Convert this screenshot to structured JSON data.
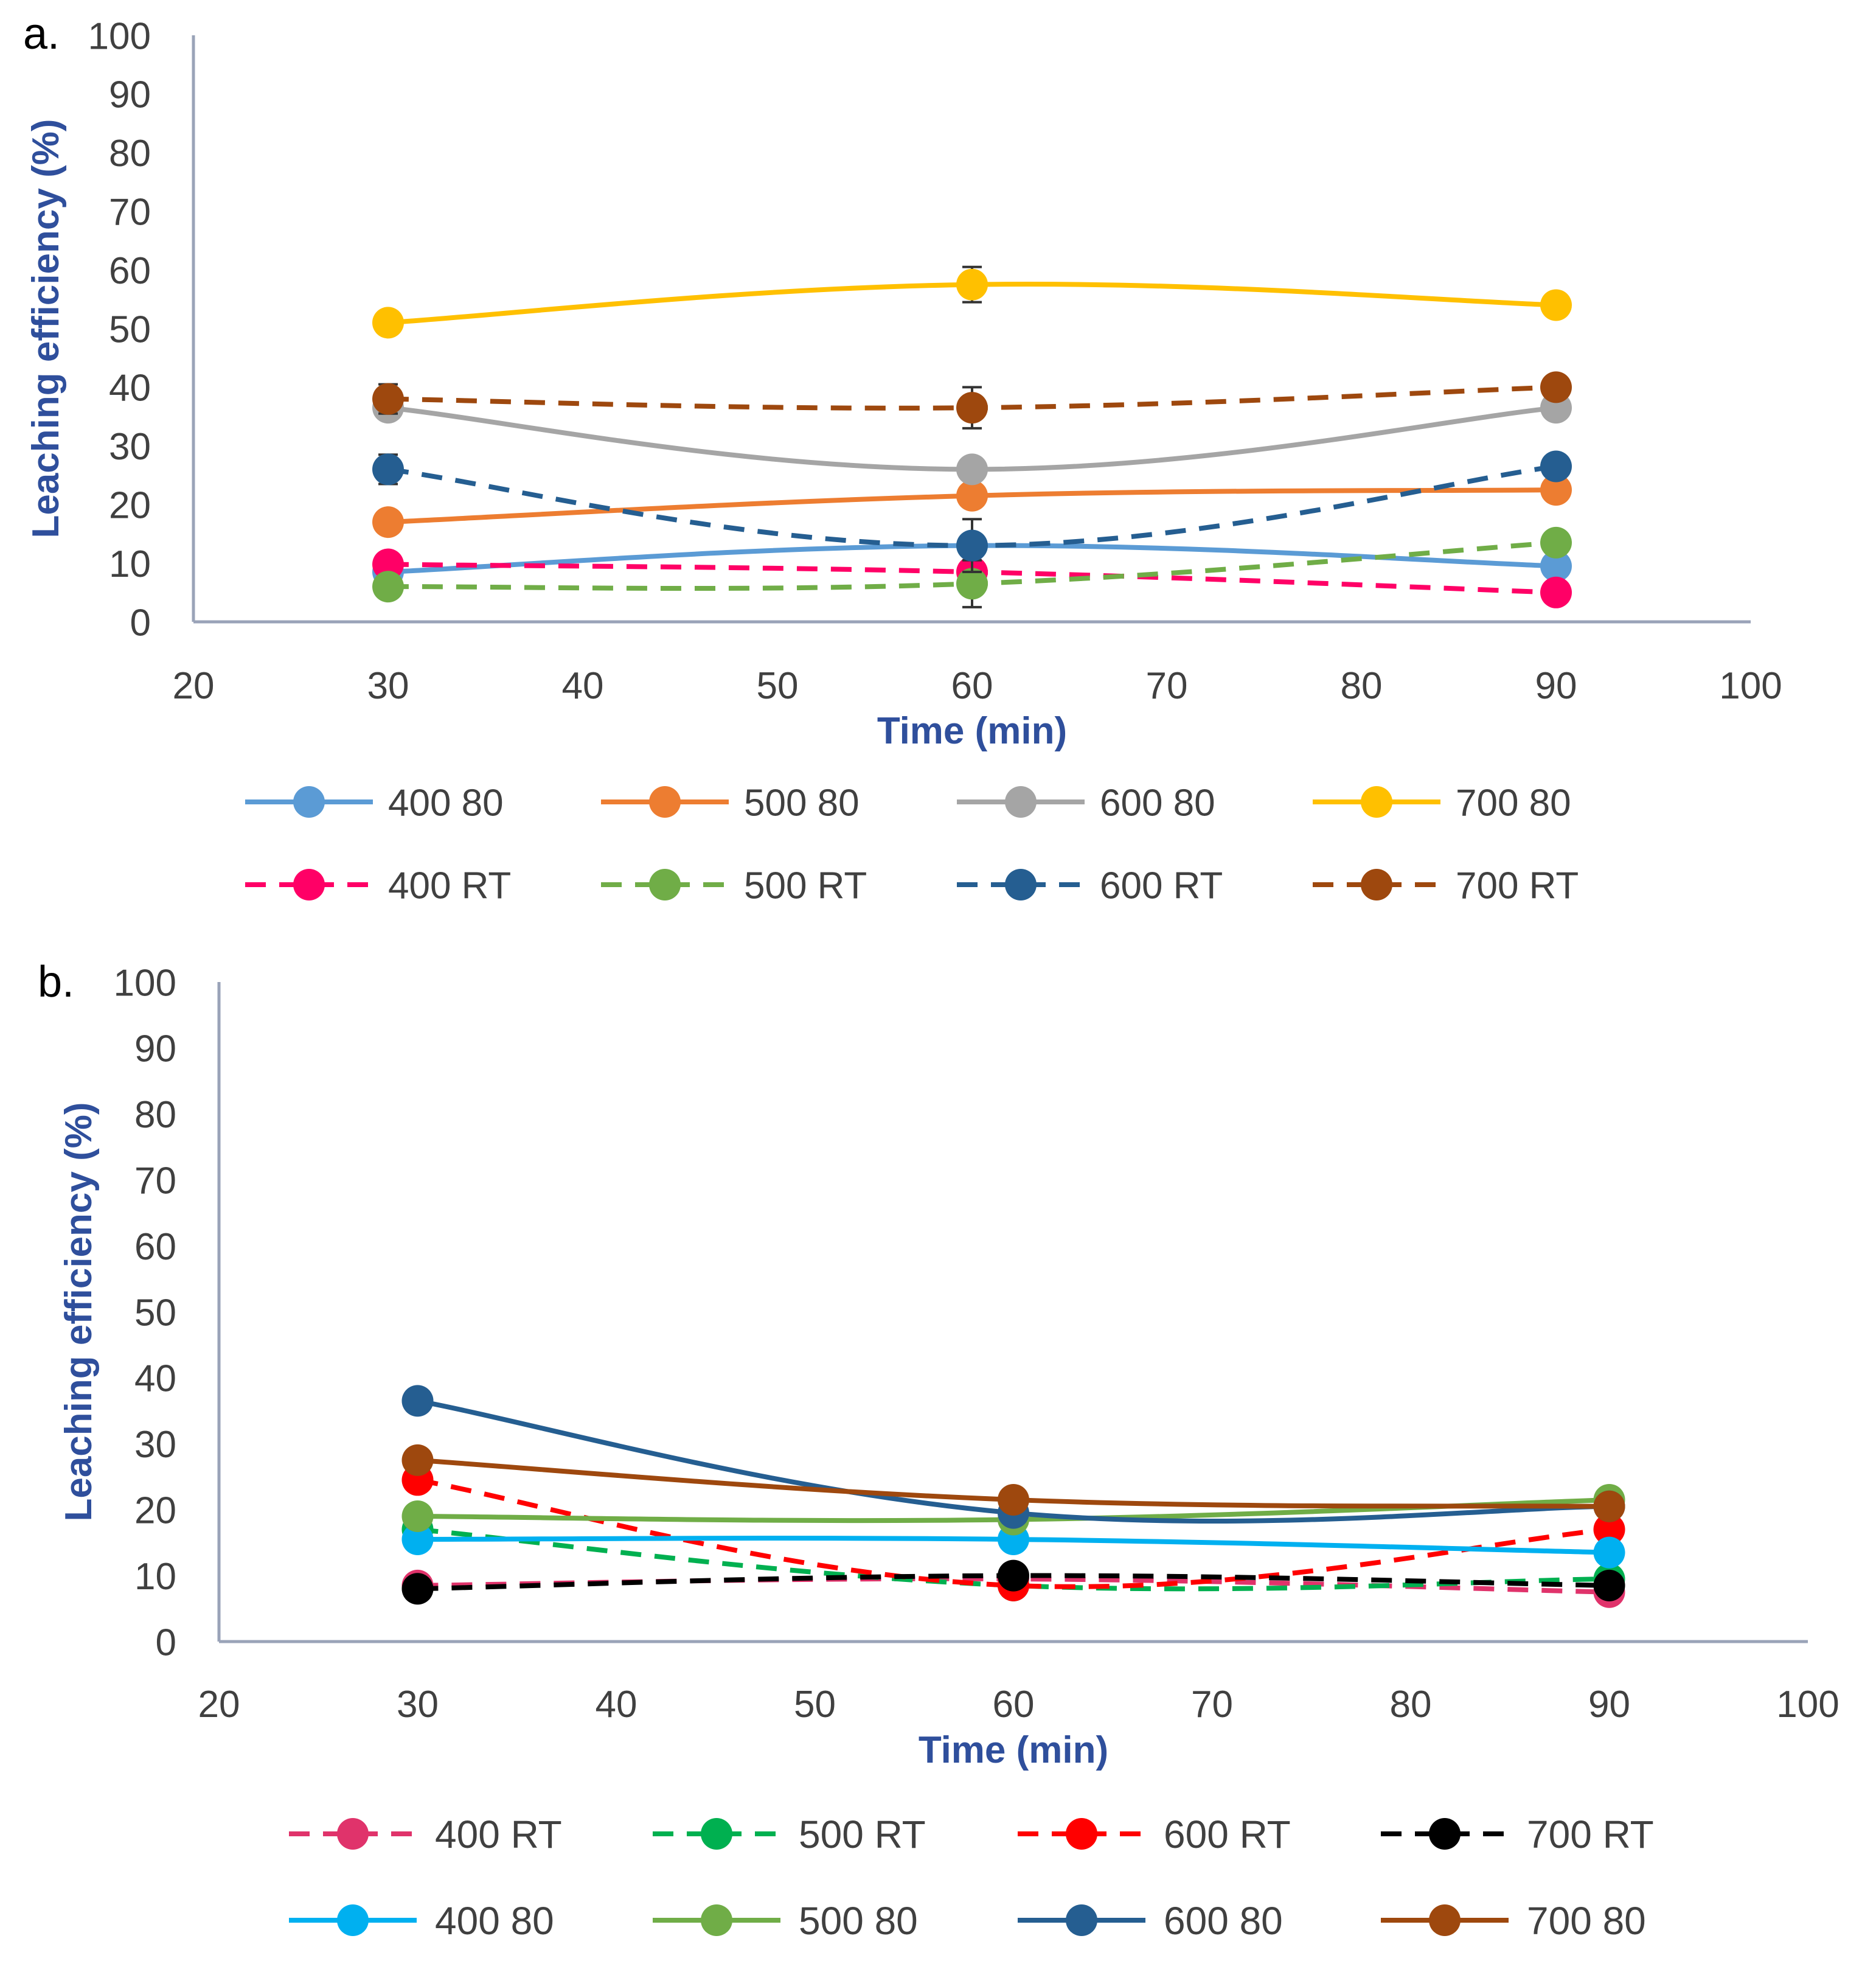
{
  "chart_data": [
    {
      "panel_label": "a.",
      "type": "line",
      "title": "",
      "xlabel": "Time (min)",
      "ylabel": "Leaching efficiency (%)",
      "xlim": [
        20,
        100
      ],
      "ylim": [
        0,
        100
      ],
      "x_ticks": [
        "20",
        "30",
        "40",
        "50",
        "60",
        "70",
        "80",
        "90",
        "100"
      ],
      "y_ticks": [
        "0",
        "10",
        "20",
        "30",
        "40",
        "50",
        "60",
        "70",
        "80",
        "90",
        "100"
      ],
      "x": [
        30,
        60,
        90
      ],
      "legend_position": "bottom",
      "series": [
        {
          "name": "400 80",
          "values": [
            8.5,
            13,
            9.5
          ],
          "color": "#5b9bd5",
          "dash": false
        },
        {
          "name": "500 80",
          "values": [
            17,
            21.5,
            22.5
          ],
          "color": "#ed7d31",
          "dash": false
        },
        {
          "name": "600 80",
          "values": [
            36.5,
            26,
            36.5
          ],
          "color": "#a5a5a5",
          "dash": false
        },
        {
          "name": "700 80",
          "values": [
            51,
            57.5,
            54
          ],
          "color": "#ffc000",
          "dash": false,
          "error": [
            0,
            3,
            1.5
          ]
        },
        {
          "name": "400 RT",
          "values": [
            9.8,
            8.5,
            5
          ],
          "color": "#ff0066",
          "dash": true
        },
        {
          "name": "500 RT",
          "values": [
            6,
            6.5,
            13.5
          ],
          "color": "#70ad47",
          "dash": true,
          "error": [
            0,
            4,
            1.5
          ]
        },
        {
          "name": "600 RT",
          "values": [
            26,
            13,
            26.5
          ],
          "color": "#255e91",
          "dash": true,
          "error": [
            2.5,
            4.5,
            0
          ]
        },
        {
          "name": "700 RT",
          "values": [
            38,
            36.5,
            40
          ],
          "color": "#9e480e",
          "dash": true,
          "error": [
            2.5,
            3.5,
            0
          ]
        }
      ]
    },
    {
      "panel_label": "b.",
      "type": "line",
      "title": "",
      "xlabel": "Time (min)",
      "ylabel": "Leaching efficiency (%)",
      "xlim": [
        20,
        100
      ],
      "ylim": [
        0,
        100
      ],
      "x_ticks": [
        "20",
        "30",
        "40",
        "50",
        "60",
        "70",
        "80",
        "90",
        "100"
      ],
      "y_ticks": [
        "0",
        "10",
        "20",
        "30",
        "40",
        "50",
        "60",
        "70",
        "80",
        "90",
        "100"
      ],
      "x": [
        30,
        60,
        90
      ],
      "legend_position": "bottom",
      "series": [
        {
          "name": "400 RT",
          "values": [
            8.5,
            9.5,
            7.5
          ],
          "color": "#e0336b",
          "dash": true
        },
        {
          "name": "500 RT",
          "values": [
            17,
            8.5,
            9.5
          ],
          "color": "#00b050",
          "dash": true
        },
        {
          "name": "600 RT",
          "values": [
            24.5,
            8.5,
            17
          ],
          "color": "#ff0000",
          "dash": true
        },
        {
          "name": "700 RT",
          "values": [
            8,
            10,
            8.5
          ],
          "color": "#000000",
          "dash": true
        },
        {
          "name": "400 80",
          "values": [
            15.5,
            15.5,
            13.5
          ],
          "color": "#00b0f0",
          "dash": false
        },
        {
          "name": "500 80",
          "values": [
            19,
            18.5,
            21.5
          ],
          "color": "#70ad47",
          "dash": false
        },
        {
          "name": "600 80",
          "values": [
            36.5,
            19.5,
            20.5
          ],
          "color": "#255e91",
          "dash": false
        },
        {
          "name": "700 80",
          "values": [
            27.5,
            21.5,
            20.5
          ],
          "color": "#9e480e",
          "dash": false
        }
      ]
    }
  ]
}
